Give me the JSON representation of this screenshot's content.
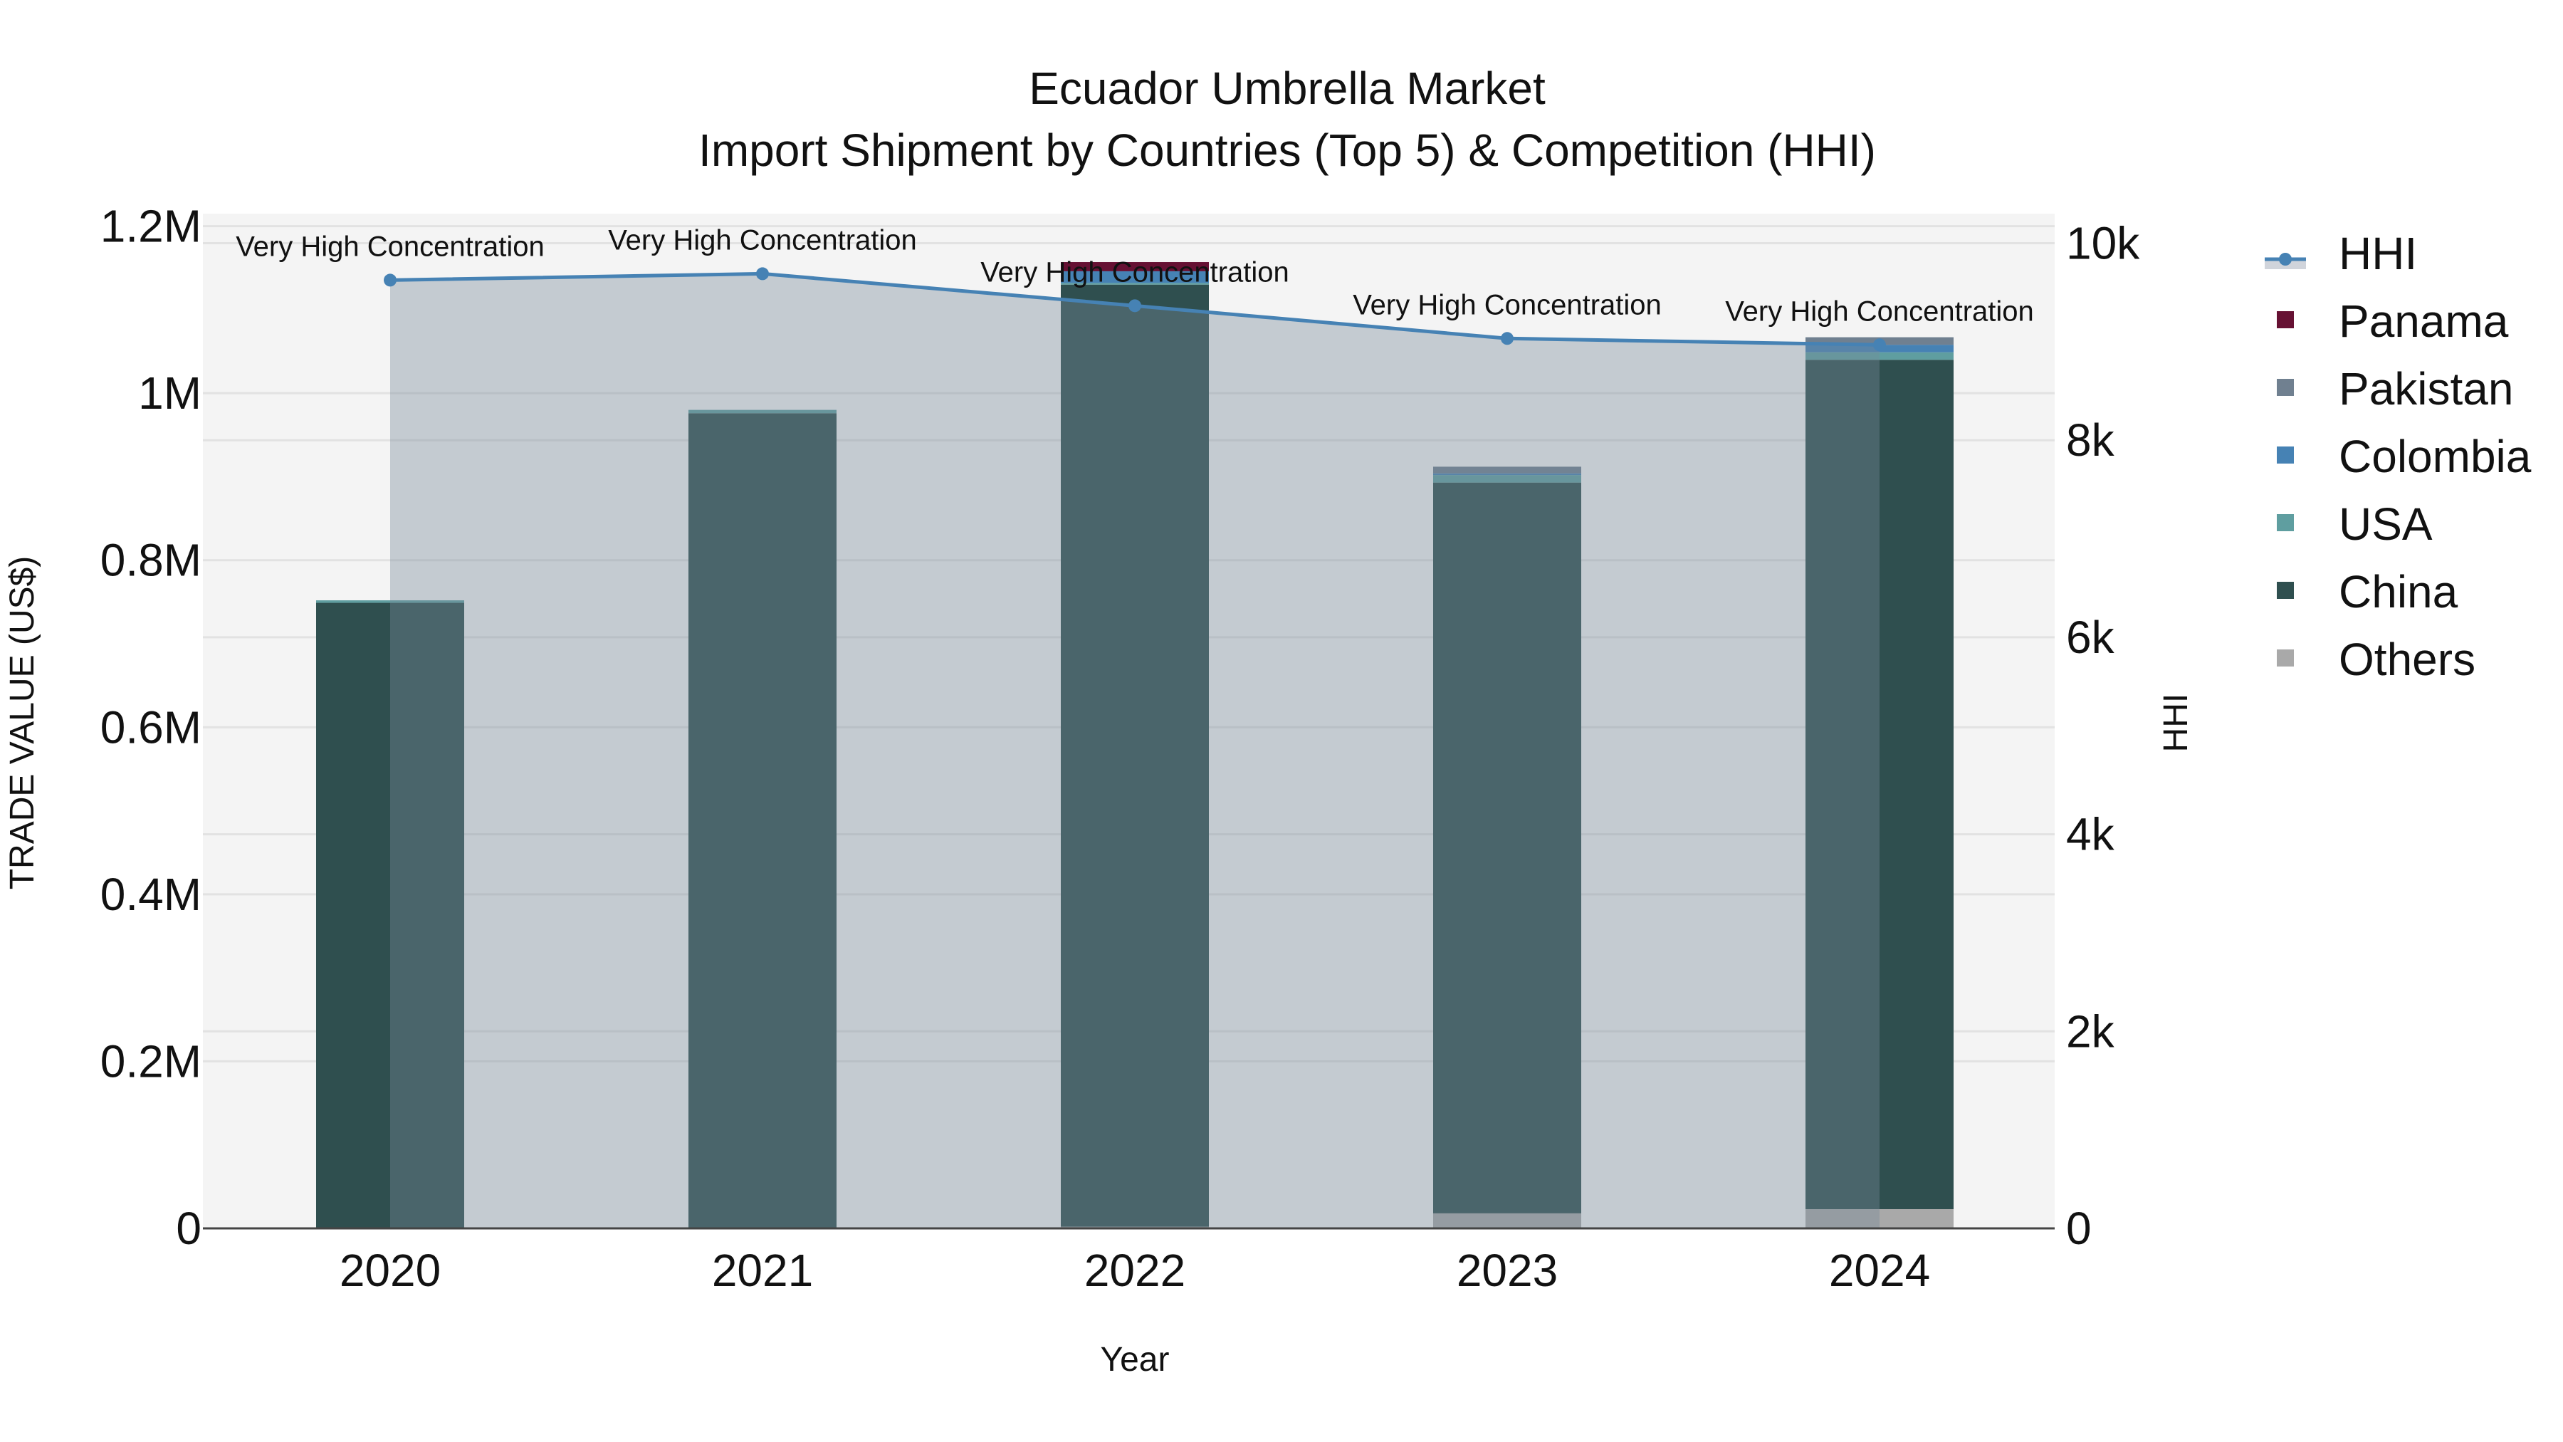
{
  "chart_data": {
    "type": "bar",
    "stacked": true,
    "title": "Ecuador Umbrella Market",
    "subtitle": "Import Shipment by Countries (Top 5) & Competition (HHI)",
    "xlabel": "Year",
    "ylabel": "TRADE VALUE (US$)",
    "y2label": "HHI",
    "categories": [
      "2020",
      "2021",
      "2022",
      "2023",
      "2024"
    ],
    "ylim": [
      0,
      1215000
    ],
    "y2lim": [
      0,
      10300
    ],
    "yticks": [
      {
        "value": 0,
        "label": "0"
      },
      {
        "value": 200000,
        "label": "0.2M"
      },
      {
        "value": 400000,
        "label": "0.4M"
      },
      {
        "value": 600000,
        "label": "0.6M"
      },
      {
        "value": 800000,
        "label": "0.8M"
      },
      {
        "value": 1000000,
        "label": "1M"
      },
      {
        "value": 1200000,
        "label": "1.2M"
      }
    ],
    "y2ticks": [
      {
        "value": 0,
        "label": "0"
      },
      {
        "value": 2000,
        "label": "2k"
      },
      {
        "value": 4000,
        "label": "4k"
      },
      {
        "value": 6000,
        "label": "6k"
      },
      {
        "value": 8000,
        "label": "8k"
      },
      {
        "value": 10000,
        "label": "10k"
      }
    ],
    "series": [
      {
        "name": "Others",
        "color": "#a9a9a9",
        "values": [
          0,
          0,
          2000,
          18000,
          23000
        ]
      },
      {
        "name": "China",
        "color": "#2f4f4f",
        "values": [
          749000,
          976000,
          1128000,
          875000,
          1017000
        ]
      },
      {
        "name": "USA",
        "color": "#5f9ea0",
        "values": [
          3000,
          4000,
          2000,
          9000,
          9000
        ]
      },
      {
        "name": "Colombia",
        "color": "#4682b4",
        "values": [
          0,
          0,
          14000,
          2000,
          9000
        ]
      },
      {
        "name": "Pakistan",
        "color": "#708090",
        "values": [
          0,
          0,
          0,
          8000,
          9000
        ]
      },
      {
        "name": "Panama",
        "color": "#661133",
        "values": [
          0,
          0,
          11000,
          0,
          0
        ]
      }
    ],
    "hhi": {
      "name": "HHI",
      "axis": "y2",
      "line_color": "#4682b4",
      "fill_color": "rgba(119,136,153,0.38)",
      "values": [
        9625,
        9690,
        9365,
        9033,
        8968
      ],
      "annotations": [
        "Very High Concentration",
        "Very High Concentration",
        "Very High Concentration",
        "Very High Concentration",
        "Very High Concentration"
      ]
    },
    "legend": {
      "position": "right",
      "items": [
        "HHI",
        "Panama",
        "Pakistan",
        "Colombia",
        "USA",
        "China",
        "Others"
      ]
    },
    "grid": true
  },
  "colors": {
    "plot_bg": "#f4f4f4",
    "grid": "#e2e2e2",
    "axis_line": "#444444"
  }
}
